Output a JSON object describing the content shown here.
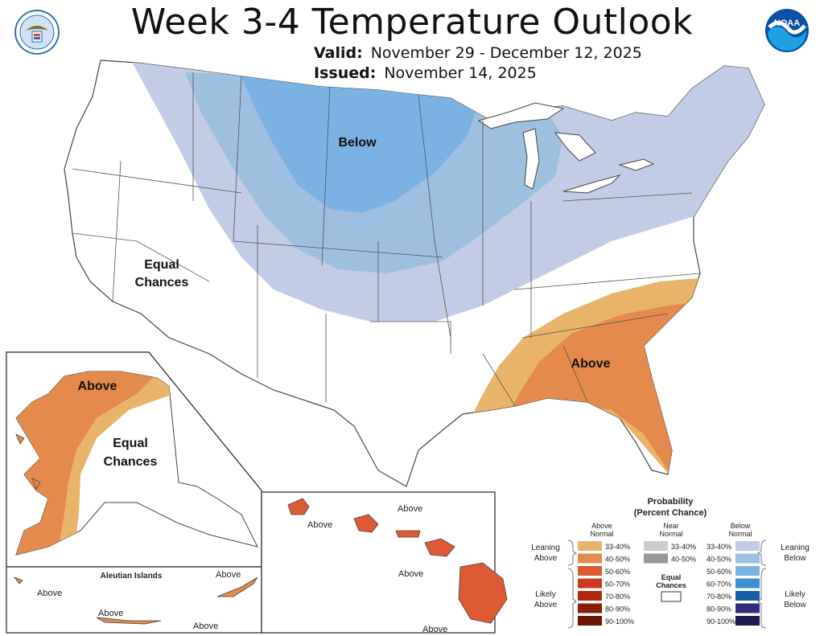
{
  "header": {
    "title": "Week 3-4 Temperature Outlook",
    "valid_label": "Valid:",
    "valid_dates": "November 29 - December 12, 2025",
    "issued_label": "Issued:",
    "issued_date": "November 14, 2025"
  },
  "map_labels": {
    "below": "Below",
    "above": "Above",
    "equal_line1": "Equal",
    "equal_line2": "Chances"
  },
  "alaska": {
    "above": "Above",
    "equal_line1": "Equal",
    "equal_line2": "Chances"
  },
  "aleutians": {
    "title": "Aleutian Islands",
    "labels": [
      "Above",
      "Above",
      "Above",
      "Above"
    ]
  },
  "hawaii": {
    "labels": [
      "Above",
      "Above",
      "Above",
      "Above"
    ]
  },
  "legend": {
    "title_line1": "Probability",
    "title_line2": "(Percent Chance)",
    "above_header": [
      "Above",
      "Normal"
    ],
    "near_header": [
      "Near",
      "Normal"
    ],
    "below_header": [
      "Below",
      "Normal"
    ],
    "leaning_above": [
      "Leaning",
      "Above"
    ],
    "likely_above": [
      "Likely",
      "Above"
    ],
    "leaning_below": [
      "Leaning",
      "Below"
    ],
    "likely_below": [
      "Likely",
      "Below"
    ],
    "equal_chances": [
      "Equal",
      "Chances"
    ],
    "above_bins": [
      {
        "label": "33-40%",
        "color": "#e8b46a"
      },
      {
        "label": "40-50%",
        "color": "#e48a4c"
      },
      {
        "label": "50-60%",
        "color": "#dd5a32"
      },
      {
        "label": "60-70%",
        "color": "#cc3a1e"
      },
      {
        "label": "70-80%",
        "color": "#b02a10"
      },
      {
        "label": "80-90%",
        "color": "#8a1e06"
      },
      {
        "label": "90-100%",
        "color": "#6a1402"
      }
    ],
    "near_bins": [
      {
        "label": "33-40%",
        "color": "#cccccc"
      },
      {
        "label": "40-50%",
        "color": "#999999"
      }
    ],
    "below_bins": [
      {
        "label": "33-40%",
        "color": "#c2cce6"
      },
      {
        "label": "40-50%",
        "color": "#9dbfe0"
      },
      {
        "label": "50-60%",
        "color": "#7ab3e2"
      },
      {
        "label": "60-70%",
        "color": "#3c8fd2"
      },
      {
        "label": "70-80%",
        "color": "#165fa8"
      },
      {
        "label": "80-90%",
        "color": "#2f2a7c"
      },
      {
        "label": "90-100%",
        "color": "#1e1a50"
      }
    ]
  }
}
